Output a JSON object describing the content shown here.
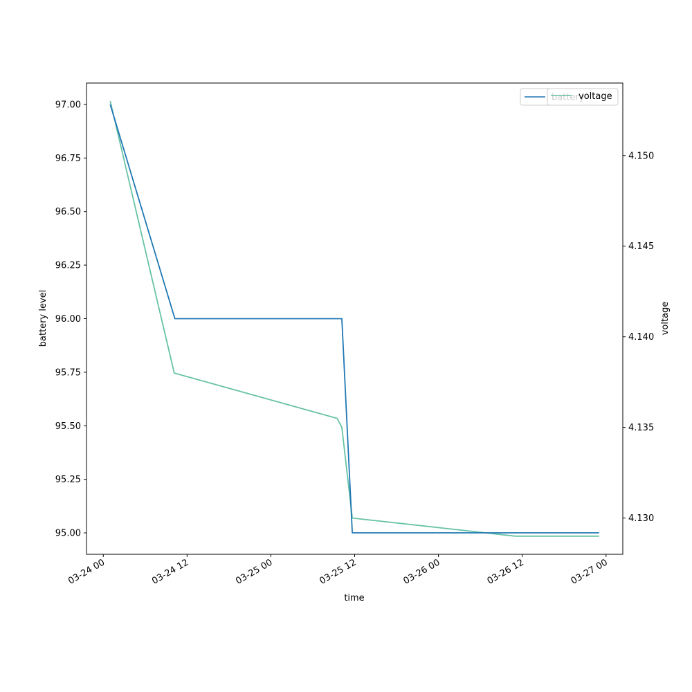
{
  "chart_data": {
    "type": "line",
    "xlabel": "time",
    "ylabel_left": "battery level",
    "ylabel_right": "voltage",
    "x_ticks": [
      "03-24 00",
      "03-24 12",
      "03-25 00",
      "03-25 12",
      "03-26 00",
      "03-26 12",
      "03-27 00"
    ],
    "left_ticks": [
      "95.00",
      "95.25",
      "95.50",
      "95.75",
      "96.00",
      "96.25",
      "96.50",
      "96.75",
      "97.00"
    ],
    "right_ticks": [
      "4.130",
      "4.135",
      "4.140",
      "4.145",
      "4.150"
    ],
    "xlim": [
      "2024-03-23T21:36",
      "2024-03-27T02:24"
    ],
    "ylim_left": [
      94.9,
      97.1
    ],
    "ylim_right": [
      4.128,
      4.154
    ],
    "series": [
      {
        "name": "battery",
        "axis": "left",
        "color": "#1f77b4",
        "points": [
          {
            "x": "2024-03-24T01:00",
            "y": 97.0
          },
          {
            "x": "2024-03-24T10:15",
            "y": 96.0
          },
          {
            "x": "2024-03-25T10:10",
            "y": 96.0
          },
          {
            "x": "2024-03-25T11:40",
            "y": 95.0
          },
          {
            "x": "2024-03-26T11:00",
            "y": 95.0
          },
          {
            "x": "2024-03-26T23:00",
            "y": 95.0
          }
        ]
      },
      {
        "name": "voltage",
        "axis": "right",
        "color": "#66c2a5",
        "points": [
          {
            "x": "2024-03-24T01:00",
            "y": 4.153
          },
          {
            "x": "2024-03-24T10:10",
            "y": 4.138
          },
          {
            "x": "2024-03-25T09:30",
            "y": 4.1355
          },
          {
            "x": "2024-03-25T10:10",
            "y": 4.135
          },
          {
            "x": "2024-03-25T11:40",
            "y": 4.13
          },
          {
            "x": "2024-03-26T11:00",
            "y": 4.129
          },
          {
            "x": "2024-03-26T23:00",
            "y": 4.129
          }
        ]
      }
    ],
    "legend": {
      "left_box": {
        "entry": "battery"
      },
      "right_box": {
        "entry": "voltage"
      },
      "placement": "top-right"
    },
    "grid": false
  }
}
